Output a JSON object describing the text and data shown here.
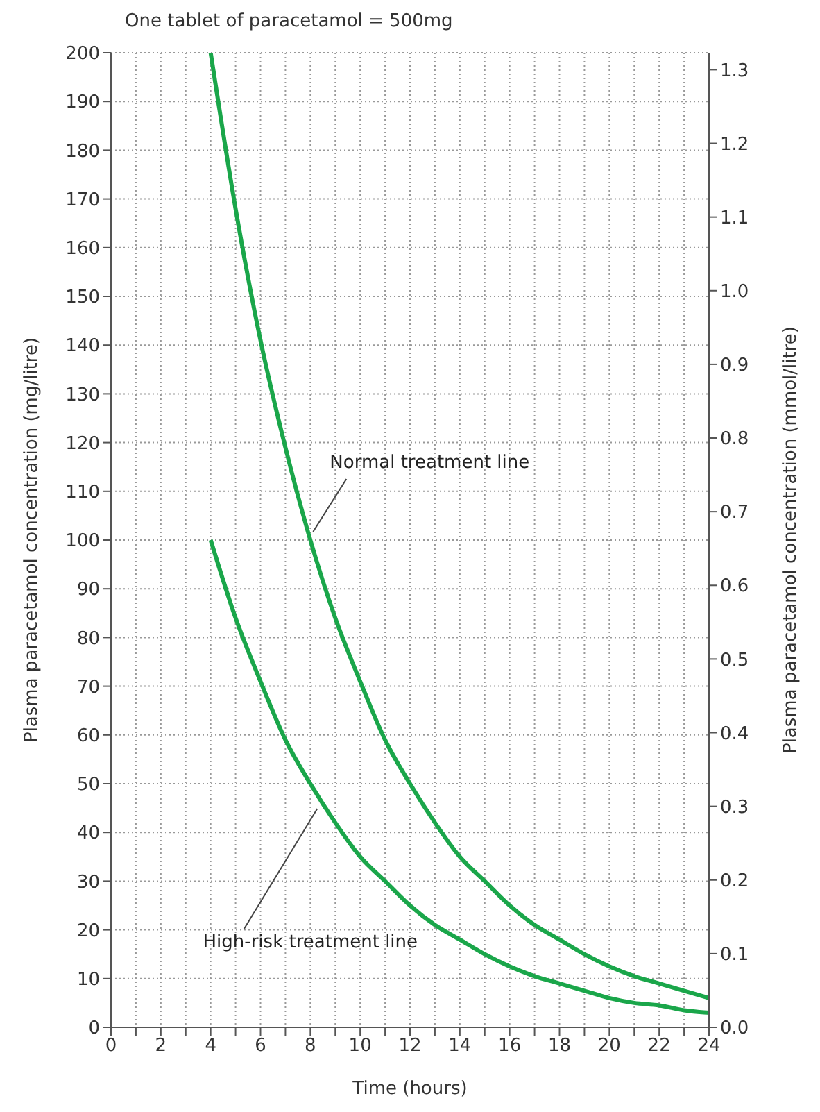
{
  "chart_data": {
    "type": "line",
    "title": "One tablet of paracetamol = 500mg",
    "xlabel": "Time (hours)",
    "ylabel": "Plasma paracetamol concentration (mg/litre)",
    "y2label": "Plasma paracetamol concentration (mmol/litre)",
    "x": [
      4,
      5,
      6,
      7,
      8,
      9,
      10,
      11,
      12,
      13,
      14,
      15,
      16,
      17,
      18,
      19,
      20,
      21,
      22,
      23,
      24
    ],
    "series": [
      {
        "name": "Normal treatment line",
        "color": "#1aa64a",
        "values": [
          200,
          168,
          141,
          119,
          100,
          84,
          71,
          59,
          50,
          42,
          35,
          30,
          25,
          21,
          18,
          15,
          12.5,
          10.5,
          9,
          7.5,
          6
        ]
      },
      {
        "name": "High-risk treatment line",
        "color": "#1aa64a",
        "values": [
          100,
          84,
          71,
          59,
          50,
          42,
          35,
          30,
          25,
          21,
          18,
          15,
          12.5,
          10.5,
          9,
          7.5,
          6,
          5,
          4.5,
          3.5,
          3
        ]
      }
    ],
    "xlim": [
      0,
      24
    ],
    "xticks": [
      0,
      {
        "value": 1,
        "label": null
      },
      2,
      {
        "value": 3,
        "label": null
      },
      4,
      {
        "value": 5,
        "label": null
      },
      6,
      {
        "value": 7,
        "label": null
      },
      8,
      {
        "value": 9,
        "label": null
      },
      10,
      {
        "value": 11,
        "label": null
      },
      12,
      {
        "value": 13,
        "label": null
      },
      14,
      {
        "value": 15,
        "label": null
      },
      16,
      {
        "value": 17,
        "label": null
      },
      18,
      {
        "value": 19,
        "label": null
      },
      20,
      {
        "value": 21,
        "label": null
      },
      22,
      {
        "value": 23,
        "label": null
      },
      24
    ],
    "ylim": [
      0,
      200
    ],
    "yticks": [
      0,
      10,
      20,
      30,
      40,
      50,
      60,
      70,
      80,
      90,
      100,
      110,
      120,
      130,
      140,
      150,
      160,
      170,
      180,
      190,
      200
    ],
    "y2lim": [
      0,
      1.323
    ],
    "y2ticks": [
      {
        "value": 0,
        "label": "0.0"
      },
      0.1,
      0.2,
      0.3,
      0.4,
      0.5,
      0.6,
      0.7,
      0.8,
      0.9,
      {
        "value": 1,
        "label": "1.0"
      },
      1.1,
      1.2,
      1.3
    ],
    "grid": true,
    "legend": false,
    "marker": "none",
    "line_style": "solid"
  }
}
